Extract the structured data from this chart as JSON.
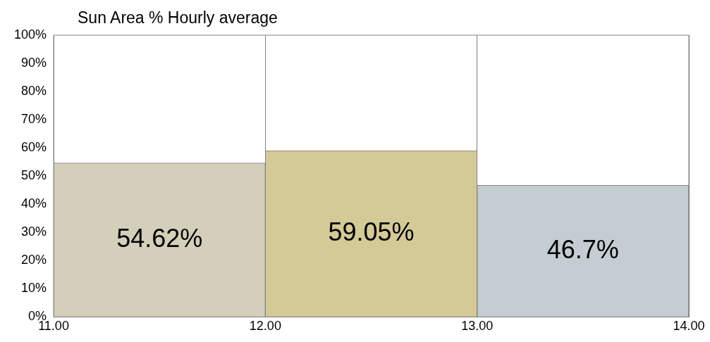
{
  "chart_data": {
    "type": "histogram",
    "title": "Sun Area % Hourly average",
    "bins": [
      11,
      12,
      13,
      14
    ],
    "values": [
      54.62,
      59.05,
      46.7
    ],
    "colors": [
      "#d4cfbb",
      "#d4ca98",
      "#c3cdd2"
    ],
    "value_labels": [
      "54.62%",
      "59.05%",
      "46.7%"
    ],
    "xlim": [
      11,
      14
    ],
    "xticks": [
      {
        "value": 11,
        "label": "11.00"
      },
      {
        "value": 12,
        "label": "12.00"
      },
      {
        "value": 13,
        "label": "13.00"
      },
      {
        "value": 14,
        "label": "14.00"
      }
    ],
    "ylim": [
      0,
      100
    ],
    "yticks": [
      {
        "value": 0,
        "label": "0%"
      },
      {
        "value": 10,
        "label": "10%"
      },
      {
        "value": 20,
        "label": "20%"
      },
      {
        "value": 30,
        "label": "30%"
      },
      {
        "value": 40,
        "label": "40%"
      },
      {
        "value": 50,
        "label": "50%"
      },
      {
        "value": 60,
        "label": "60%"
      },
      {
        "value": 70,
        "label": "70%"
      },
      {
        "value": 80,
        "label": "80%"
      },
      {
        "value": 90,
        "label": "90%"
      },
      {
        "value": 100,
        "label": "100%"
      }
    ],
    "grid": "x",
    "legend": false
  }
}
